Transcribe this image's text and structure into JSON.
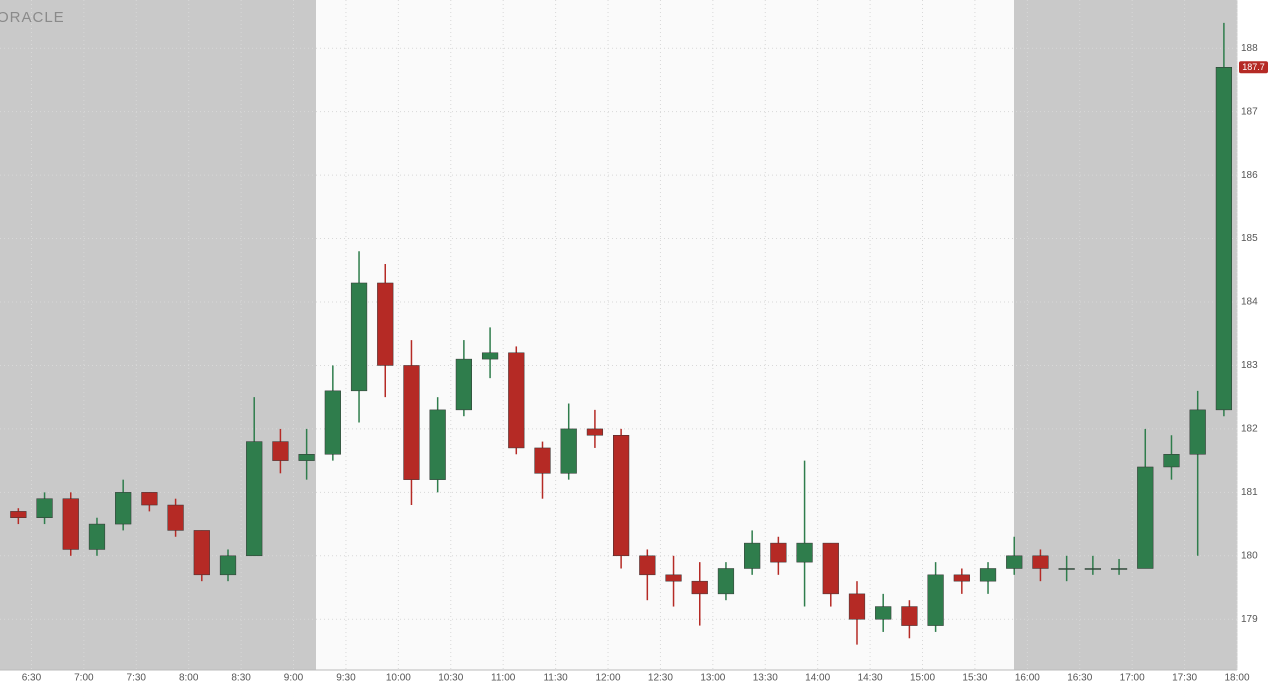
{
  "chart_data": {
    "type": "candlestick",
    "logo": "ORACLE",
    "last_price": 187.7,
    "up_color": "#2f7d4c",
    "down_color": "#b52a25",
    "grid": true,
    "xlim": [
      "6:12",
      "18:00"
    ],
    "xticks": [
      "6:30",
      "7:00",
      "7:30",
      "8:00",
      "8:30",
      "9:00",
      "9:30",
      "10:00",
      "10:30",
      "11:00",
      "11:30",
      "12:00",
      "12:30",
      "13:00",
      "13:30",
      "14:00",
      "14:30",
      "15:00",
      "15:30",
      "16:00",
      "16:30",
      "17:00",
      "17:30",
      "18:00"
    ],
    "ylim": [
      178.2,
      188.76
    ],
    "yticks": [
      179,
      180,
      181,
      182,
      183,
      184,
      185,
      186,
      187,
      188
    ],
    "x": [
      "6:15",
      "6:30",
      "6:45",
      "7:00",
      "7:15",
      "7:30",
      "7:45",
      "8:00",
      "8:15",
      "8:30",
      "8:45",
      "9:00",
      "9:15",
      "9:30",
      "9:45",
      "10:00",
      "10:15",
      "10:30",
      "10:45",
      "11:00",
      "11:15",
      "11:30",
      "11:45",
      "12:00",
      "12:15",
      "12:30",
      "12:45",
      "13:00",
      "13:15",
      "13:30",
      "13:45",
      "14:00",
      "14:15",
      "14:30",
      "14:45",
      "15:00",
      "15:15",
      "15:30",
      "15:45",
      "16:00",
      "16:15",
      "16:30",
      "16:45",
      "17:00",
      "17:15",
      "17:30",
      "17:45"
    ],
    "open": [
      180.7,
      180.6,
      180.9,
      180.1,
      180.5,
      181.0,
      180.8,
      180.4,
      179.7,
      180.0,
      181.8,
      181.5,
      181.6,
      182.6,
      184.3,
      183.0,
      181.2,
      182.3,
      183.1,
      183.2,
      181.7,
      181.3,
      182.0,
      181.9,
      180.0,
      179.7,
      179.6,
      179.4,
      179.8,
      180.2,
      179.9,
      180.2,
      179.4,
      179.0,
      179.2,
      178.9,
      179.7,
      179.6,
      179.8,
      180.0,
      179.8,
      179.8,
      179.8,
      179.8,
      181.4,
      181.6,
      182.3
    ],
    "high": [
      180.75,
      181.0,
      181.0,
      180.6,
      181.2,
      181.0,
      180.9,
      180.4,
      180.1,
      182.5,
      182.0,
      182.0,
      183.0,
      184.8,
      184.6,
      183.4,
      182.5,
      183.4,
      183.6,
      183.3,
      181.8,
      182.4,
      182.3,
      182.0,
      180.1,
      180.0,
      179.9,
      179.9,
      180.4,
      180.3,
      181.5,
      180.2,
      179.6,
      179.4,
      179.3,
      179.9,
      179.8,
      179.9,
      180.3,
      180.1,
      180.0,
      180.0,
      179.95,
      182.0,
      181.9,
      182.6,
      188.4
    ],
    "low": [
      180.5,
      180.5,
      180.0,
      180.0,
      180.4,
      180.7,
      180.3,
      179.6,
      179.6,
      180.0,
      181.3,
      181.2,
      181.5,
      182.1,
      182.5,
      180.8,
      181.0,
      182.2,
      182.8,
      181.6,
      180.9,
      181.2,
      181.7,
      179.8,
      179.3,
      179.2,
      178.9,
      179.3,
      179.7,
      179.7,
      179.2,
      179.2,
      178.6,
      178.8,
      178.7,
      178.8,
      179.4,
      179.4,
      179.7,
      179.6,
      179.6,
      179.7,
      179.7,
      179.8,
      181.2,
      180.0,
      182.2
    ],
    "close": [
      180.6,
      180.9,
      180.1,
      180.5,
      181.0,
      180.8,
      180.4,
      179.7,
      180.0,
      181.8,
      181.5,
      181.6,
      182.6,
      184.3,
      183.0,
      181.2,
      182.3,
      183.1,
      183.2,
      181.7,
      181.3,
      182.0,
      181.9,
      180.0,
      179.7,
      179.6,
      179.4,
      179.8,
      180.2,
      179.9,
      180.2,
      179.4,
      179.0,
      179.2,
      178.9,
      179.7,
      179.6,
      179.8,
      180.0,
      179.8,
      179.8,
      179.8,
      179.8,
      181.4,
      181.6,
      182.3,
      187.7
    ]
  }
}
